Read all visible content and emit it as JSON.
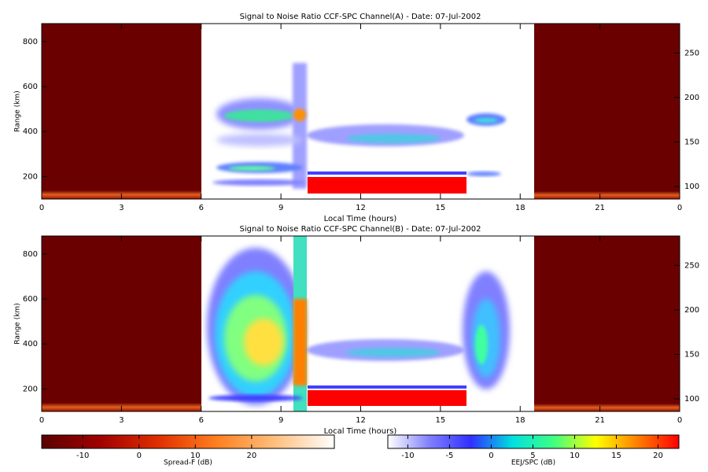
{
  "chart_data": [
    {
      "type": "heatmap",
      "title": "Signal to Noise Ratio CCF-SPC Channel(A) - Date: 07-Jul-2002",
      "xlabel": "Local Time (hours)",
      "ylabel": "Range (km)",
      "xlim": [
        0,
        24
      ],
      "xticks": [
        0,
        3,
        6,
        9,
        12,
        15,
        18,
        21,
        {
          "value": 24,
          "label": "0"
        }
      ],
      "ylim": [
        100,
        880
      ],
      "yticks": [
        200,
        400,
        600,
        800
      ],
      "y2lim": [
        86,
        283
      ],
      "y2ticks": [
        100,
        150,
        200,
        250
      ]
    },
    {
      "type": "heatmap",
      "title": "Signal to Noise Ratio CCF-SPC Channel(B) - Date: 07-Jul-2002",
      "xlabel": "Local Time (hours)",
      "ylabel": "Range (km)",
      "xlim": [
        0,
        24
      ],
      "xticks": [
        0,
        3,
        6,
        9,
        12,
        15,
        18,
        21,
        {
          "value": 24,
          "label": "0"
        }
      ],
      "ylim": [
        100,
        880
      ],
      "yticks": [
        200,
        400,
        600,
        800
      ],
      "y2lim": [
        86,
        283
      ],
      "y2ticks": [
        100,
        150,
        200,
        250
      ]
    }
  ],
  "colorbars": [
    {
      "label": "Spread-F (dB)",
      "lim": [
        -17.3,
        34.7
      ],
      "ticks": [
        -10,
        0,
        10,
        20
      ],
      "colors": [
        "#5a0000",
        "#a00000",
        "#e03000",
        "#ff8020",
        "#ffc080",
        "#ffffff"
      ]
    },
    {
      "label": "EEJ/SPC (dB)",
      "lim": [
        -12.4,
        22.5
      ],
      "ticks": [
        -10,
        -5,
        0,
        5,
        10,
        15,
        20
      ],
      "colors": [
        "#ffffff",
        "#8080ff",
        "#3030ff",
        "#00e0e0",
        "#40ff80",
        "#ffff00",
        "#ff8000",
        "#ff0000"
      ]
    }
  ]
}
